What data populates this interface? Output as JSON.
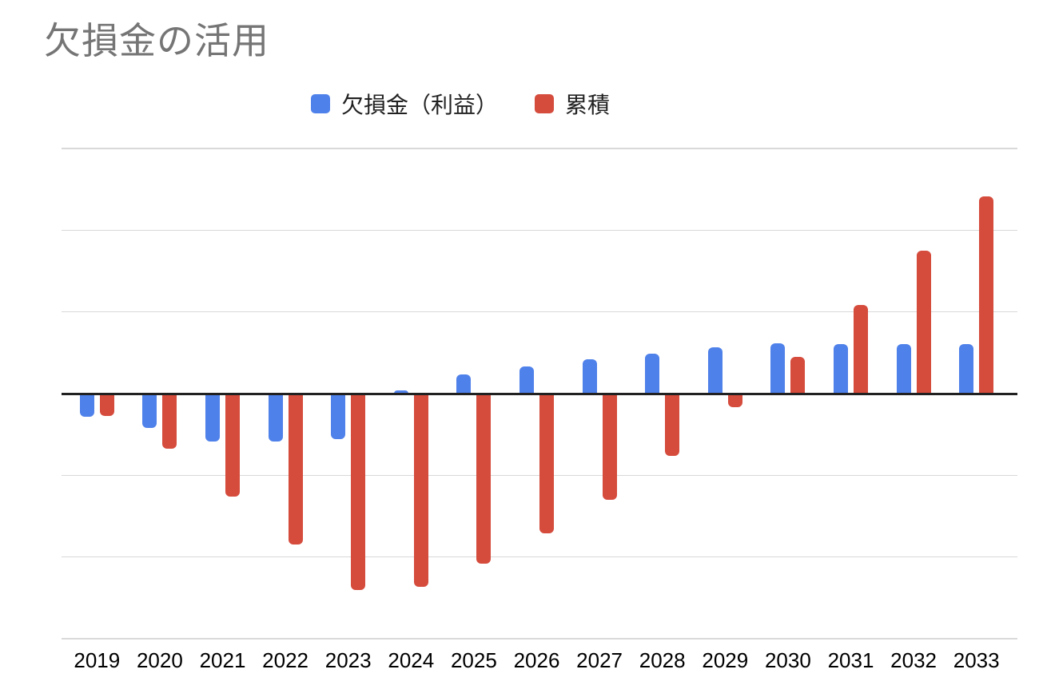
{
  "page": {
    "background": "#ffffff"
  },
  "chart_data": {
    "type": "bar",
    "title": "欠損金の活用",
    "title_color": "#757575",
    "categories": [
      "2019",
      "2020",
      "2021",
      "2022",
      "2023",
      "2024",
      "2025",
      "2026",
      "2027",
      "2028",
      "2029",
      "2030",
      "2031",
      "2032",
      "2033"
    ],
    "series": [
      {
        "name": "欠損金（利益）",
        "color": "#4f81ea",
        "values": [
          -0.28,
          -0.42,
          -0.59,
          -0.59,
          -0.56,
          0.04,
          0.23,
          0.33,
          0.42,
          0.49,
          0.57,
          0.62,
          0.61,
          0.61,
          0.61
        ]
      },
      {
        "name": "累積",
        "color": "#d54b3c",
        "values": [
          -0.27,
          -0.67,
          -1.26,
          -1.85,
          -2.4,
          -2.36,
          -2.08,
          -1.71,
          -1.3,
          -0.76,
          -0.17,
          0.45,
          1.08,
          1.75,
          2.41
        ]
      }
    ],
    "xlabel": "",
    "ylabel": "",
    "ylim": [
      -3,
      3
    ],
    "y_tick_labels_visible": false,
    "gridline_interval": 1,
    "gridline_color": "#d9d9d9",
    "zero_line_color": "#212121",
    "x_tick_label_color": "#000000",
    "legend_position": "top",
    "note": "No numeric y-axis labels are shown; values are estimated in units of one gridline division. 累積 is the running cumulative total of 欠損金（利益）."
  }
}
